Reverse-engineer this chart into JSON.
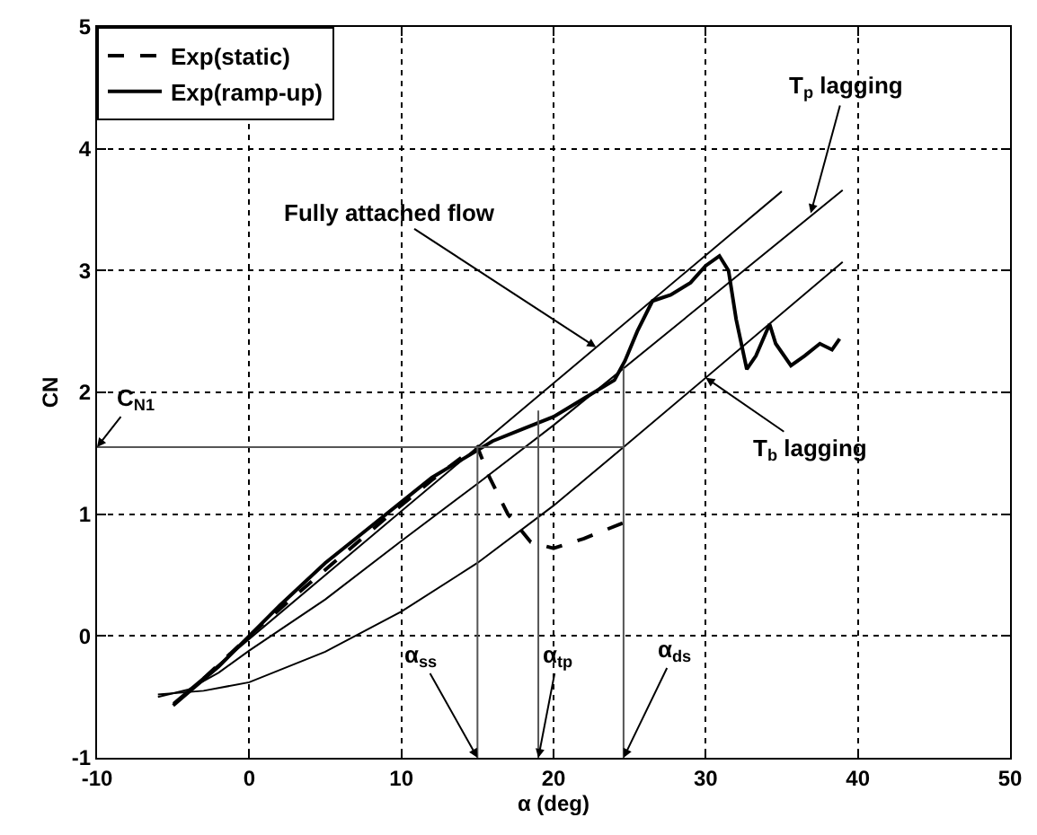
{
  "chart_data": {
    "type": "line",
    "xlabel": "α (deg)",
    "ylabel": "CN",
    "xlim": [
      -10,
      50
    ],
    "xticks": [
      -10,
      0,
      10,
      20,
      30,
      40,
      50
    ],
    "ylim": [
      -1,
      5
    ],
    "yticks": [
      -1,
      0,
      1,
      2,
      3,
      4,
      5
    ],
    "grid": true,
    "legend": "top left",
    "marker": "none",
    "series": [
      {
        "name": "Exp(static)",
        "color": "#000000",
        "line_style": "dashed",
        "x": [
          -3,
          0,
          3,
          6,
          9,
          12,
          14,
          15,
          15.8,
          17,
          18.5,
          20,
          22,
          25
        ],
        "values": [
          -0.35,
          0.0,
          0.33,
          0.65,
          0.97,
          1.28,
          1.47,
          1.55,
          1.3,
          1.0,
          0.77,
          0.72,
          0.8,
          0.95
        ]
      },
      {
        "name": "Exp(ramp-up)",
        "color": "#000000",
        "line_style": "solid",
        "x": [
          -5,
          -2,
          0,
          2,
          5,
          8,
          10,
          12,
          14,
          16,
          18,
          20,
          22,
          24,
          24.7,
          25.5,
          26.5,
          27.7,
          29,
          30,
          30.9,
          31.5,
          32,
          32.7,
          33.3,
          34.2,
          34.6,
          35.6,
          36.5,
          37.5,
          38.3,
          38.8
        ],
        "values": [
          -0.57,
          -0.25,
          0.0,
          0.25,
          0.6,
          0.9,
          1.1,
          1.3,
          1.45,
          1.6,
          1.7,
          1.8,
          1.95,
          2.1,
          2.26,
          2.5,
          2.75,
          2.8,
          2.9,
          3.04,
          3.12,
          3.0,
          2.6,
          2.19,
          2.3,
          2.56,
          2.4,
          2.22,
          2.3,
          2.4,
          2.35,
          2.44
        ]
      },
      {
        "color": "#000000",
        "line_style": "solid",
        "x": [
          -5,
          35
        ],
        "values": [
          -0.55,
          3.65
        ]
      },
      {
        "color": "#000000",
        "line_style": "solid",
        "x": [
          -6,
          -4,
          -2,
          0,
          5,
          10,
          15,
          20,
          39
        ],
        "values": [
          -0.5,
          -0.44,
          -0.3,
          -0.12,
          0.3,
          0.78,
          1.25,
          1.73,
          3.66
        ]
      },
      {
        "color": "#000000",
        "line_style": "solid",
        "x": [
          -6,
          -3,
          0,
          5,
          10,
          15,
          20,
          24.6,
          39
        ],
        "values": [
          -0.48,
          -0.45,
          -0.38,
          -0.13,
          0.2,
          0.6,
          1.07,
          1.55,
          3.07
        ]
      },
      {
        "color": "#555555",
        "line_style": "solid",
        "x": [
          -10,
          24.6
        ],
        "values": [
          1.55,
          1.55
        ]
      },
      {
        "color": "#555555",
        "line_style": "solid",
        "x": [
          15,
          15
        ],
        "values": [
          -1,
          1.55
        ]
      },
      {
        "color": "#555555",
        "line_style": "solid",
        "x": [
          19,
          19
        ],
        "values": [
          -1,
          1.85
        ]
      },
      {
        "color": "#555555",
        "line_style": "solid",
        "x": [
          24.6,
          24.6
        ],
        "values": [
          -1,
          2.2
        ]
      }
    ],
    "annotations": [
      {
        "text": "Fully attached flow",
        "x": 22.8,
        "y": 2.37
      },
      {
        "text": "T$_{p}$ lagging",
        "x": 36.9,
        "y": 3.47
      },
      {
        "text": "T$_{b}$ lagging",
        "x": 30,
        "y": 2.12
      },
      {
        "text": "C$_{N1}$",
        "x": -10,
        "y": 1.55
      },
      {
        "text": "α$_{ss}$",
        "x": 15,
        "y": -1
      },
      {
        "text": "α$_{tp}$",
        "x": 19,
        "y": -1
      },
      {
        "text": "α$_{ds}$",
        "x": 24.6,
        "y": -1
      }
    ]
  }
}
